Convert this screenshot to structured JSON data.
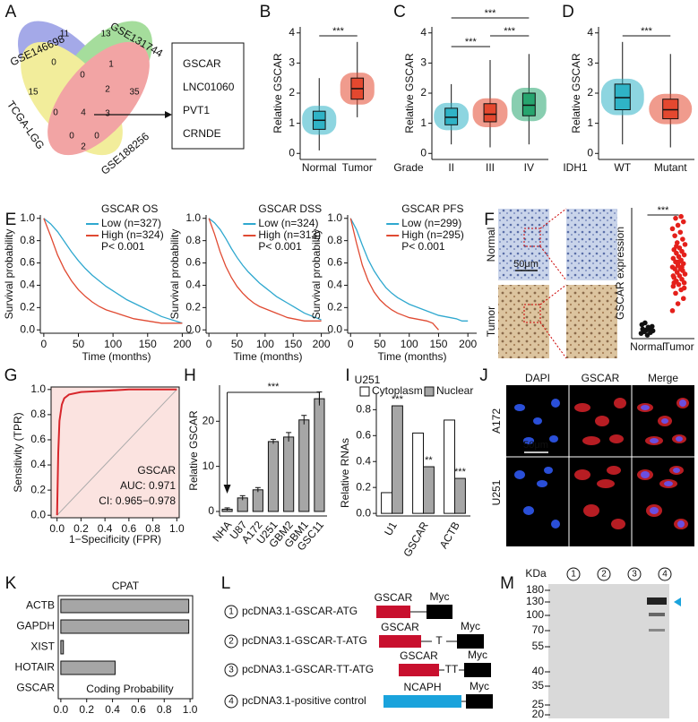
{
  "panel_letters": [
    "A",
    "B",
    "C",
    "D",
    "E",
    "F",
    "G",
    "H",
    "I",
    "J",
    "K",
    "L",
    "M"
  ],
  "venn": {
    "sets": [
      "GSE146698",
      "GSE131744",
      "TCGA-LGG",
      "GSE188256"
    ],
    "counts": [
      11,
      13,
      15,
      35,
      0,
      1,
      0,
      2,
      0,
      4,
      3,
      0,
      2,
      0
    ]
  },
  "candidate_box": {
    "items": [
      "GSCAR",
      "LNC01060",
      "PVT1",
      "CRNDE"
    ]
  },
  "ihc": {
    "row_labels": [
      "Normal",
      "Tumor"
    ],
    "scale_bar": "50μm"
  },
  "fluorescence": {
    "columns": [
      "DAPI",
      "GSCAR",
      "Merge"
    ],
    "rows": [
      "A172",
      "U251"
    ],
    "scale_bar": "50μm"
  },
  "constructs": {
    "items": [
      {
        "number": 1,
        "name": "pcDNA3.1-GSCAR-ATG",
        "insert": "GSCAR",
        "insert_color": "#c8102e",
        "tag": "Myc"
      },
      {
        "number": 2,
        "name": "pcDNA3.1-GSCAR-T-ATG",
        "insert": "GSCAR",
        "insert_color": "#c8102e",
        "linker": "T",
        "tag": "Myc"
      },
      {
        "number": 3,
        "name": "pcDNA3.1-GSCAR-TT-ATG",
        "insert": "GSCAR",
        "insert_color": "#c8102e",
        "linker": "TT",
        "tag": "Myc"
      },
      {
        "number": 4,
        "name": "pcDNA3.1-positive control",
        "insert": "NCAPH",
        "insert_color": "#1aa3dc",
        "tag": "Myc"
      }
    ]
  },
  "western": {
    "unit": "KDa",
    "markers": [
      180,
      130,
      100,
      70,
      55,
      40,
      35,
      25,
      20
    ],
    "lanes": [
      1,
      2,
      3,
      4
    ]
  },
  "chart_data": [
    {
      "type": "box",
      "y_label": "Relative GSCAR",
      "categories": [
        "Normal",
        "Tumor"
      ],
      "colors": [
        "#2fb3c6",
        "#e4482f"
      ],
      "ylim": [
        -0.2,
        4.2
      ],
      "yticks": [
        0,
        1,
        2,
        3,
        4
      ],
      "boxes": [
        {
          "min": 0.1,
          "q1": 0.8,
          "median": 1.1,
          "q3": 1.4,
          "max": 2.5
        },
        {
          "min": 1.2,
          "q1": 1.8,
          "median": 2.15,
          "q3": 2.5,
          "max": 3.7
        }
      ],
      "annotations": [
        "***"
      ]
    },
    {
      "type": "box",
      "y_label": "Relative GSCAR",
      "x_label": "Grade",
      "categories": [
        "II",
        "III",
        "IV"
      ],
      "colors": [
        "#2fb3c6",
        "#e4482f",
        "#27a56f"
      ],
      "ylim": [
        -0.2,
        4.2
      ],
      "yticks": [
        0,
        1,
        2,
        3,
        4
      ],
      "boxes": [
        {
          "min": 0.3,
          "q1": 0.95,
          "median": 1.2,
          "q3": 1.5,
          "max": 2.3
        },
        {
          "min": 0.2,
          "q1": 1.05,
          "median": 1.3,
          "q3": 1.65,
          "max": 3.1
        },
        {
          "min": 0.3,
          "q1": 1.25,
          "median": 1.6,
          "q3": 2.0,
          "max": 3.3
        }
      ],
      "annotations": [
        "***",
        "***",
        "***"
      ]
    },
    {
      "type": "box",
      "y_label": "Relative GSCAR",
      "x_label": "IDH1",
      "categories": [
        "WT",
        "Mutant"
      ],
      "colors": [
        "#2fb3c6",
        "#e4482f"
      ],
      "ylim": [
        -0.2,
        4.2
      ],
      "yticks": [
        0,
        1,
        2,
        3,
        4
      ],
      "boxes": [
        {
          "min": 0.3,
          "q1": 1.45,
          "median": 1.85,
          "q3": 2.3,
          "max": 3.7
        },
        {
          "min": 0.2,
          "q1": 1.15,
          "median": 1.45,
          "q3": 1.8,
          "max": 3.3
        }
      ],
      "annotations": [
        "***"
      ]
    },
    {
      "type": "km",
      "title": "GSCAR OS",
      "annotation": "P< 0.001",
      "y_label": "Survival probability",
      "x_label": "Time (months)",
      "x": [
        0,
        10,
        20,
        30,
        40,
        50,
        60,
        70,
        80,
        90,
        100,
        110,
        120,
        130,
        140,
        150,
        160,
        170,
        180,
        190,
        200
      ],
      "series": [
        {
          "name": "Low (n=327)",
          "color": "#2fa8cf",
          "values": [
            1,
            0.95,
            0.88,
            0.79,
            0.7,
            0.62,
            0.55,
            0.49,
            0.44,
            0.39,
            0.35,
            0.31,
            0.27,
            0.24,
            0.21,
            0.18,
            0.15,
            0.12,
            0.1,
            0.08,
            0.06
          ]
        },
        {
          "name": "High (n=324)",
          "color": "#e04a32",
          "values": [
            1,
            0.84,
            0.67,
            0.54,
            0.44,
            0.36,
            0.3,
            0.25,
            0.21,
            0.18,
            0.16,
            0.14,
            0.12,
            0.1,
            0.09,
            0.08,
            0.07,
            0.06,
            0.06,
            0.06,
            0.06
          ]
        }
      ],
      "xlim": [
        -5,
        215
      ],
      "ylim": [
        -0.03,
        1.03
      ],
      "xticks": [
        0,
        50,
        100,
        150,
        200
      ],
      "yticks": [
        {
          "value": 0,
          "label": "0.0"
        },
        {
          "value": 0.2,
          "label": "0.2"
        },
        {
          "value": 0.4,
          "label": "0.4"
        },
        {
          "value": 0.6,
          "label": "0.6"
        },
        {
          "value": 0.8,
          "label": "0.8"
        },
        {
          "value": 1,
          "label": "1.0"
        }
      ]
    },
    {
      "type": "km",
      "title": "GSCAR DSS",
      "annotation": "P< 0.001",
      "y_label": "Survival probability",
      "x_label": "Time (months)",
      "x": [
        0,
        10,
        20,
        30,
        40,
        50,
        60,
        70,
        80,
        90,
        100,
        110,
        120,
        130,
        140,
        150,
        160,
        170,
        180,
        190,
        200
      ],
      "series": [
        {
          "name": "Low (n=324)",
          "color": "#2fa8cf",
          "values": [
            1,
            0.96,
            0.9,
            0.82,
            0.73,
            0.65,
            0.58,
            0.52,
            0.47,
            0.42,
            0.38,
            0.34,
            0.3,
            0.27,
            0.24,
            0.21,
            0.18,
            0.15,
            0.13,
            0.11,
            0.09
          ]
        },
        {
          "name": "High (n=313)",
          "color": "#e04a32",
          "values": [
            1,
            0.86,
            0.7,
            0.57,
            0.47,
            0.39,
            0.33,
            0.28,
            0.24,
            0.21,
            0.19,
            0.17,
            0.15,
            0.13,
            0.11,
            0.1,
            0.09,
            0.08,
            0.08,
            0.08,
            0.08
          ]
        }
      ],
      "xlim": [
        -5,
        215
      ],
      "ylim": [
        -0.03,
        1.03
      ],
      "xticks": [
        0,
        50,
        100,
        150,
        200
      ],
      "yticks": [
        {
          "value": 0,
          "label": "0.0"
        },
        {
          "value": 0.2,
          "label": "0.2"
        },
        {
          "value": 0.4,
          "label": "0.4"
        },
        {
          "value": 0.6,
          "label": "0.6"
        },
        {
          "value": 0.8,
          "label": "0.8"
        },
        {
          "value": 1,
          "label": "1.0"
        }
      ]
    },
    {
      "type": "km",
      "title": "GSCAR PFS",
      "annotation": "P< 0.001",
      "y_label": "Survival probability",
      "x_label": "Time (months)",
      "x": [
        0,
        10,
        20,
        30,
        40,
        50,
        60,
        70,
        80,
        90,
        100,
        110,
        120,
        130,
        140,
        150,
        160,
        170,
        180,
        190,
        200
      ],
      "series": [
        {
          "name": "Low (n=299)",
          "color": "#2fa8cf",
          "values": [
            1,
            0.9,
            0.76,
            0.63,
            0.53,
            0.45,
            0.38,
            0.33,
            0.29,
            0.26,
            0.23,
            0.21,
            0.19,
            0.17,
            0.15,
            0.13,
            0.12,
            0.11,
            0.1,
            0.08,
            0.08
          ]
        },
        {
          "name": "High (n=295)",
          "color": "#e04a32",
          "values": [
            1,
            0.78,
            0.58,
            0.44,
            0.34,
            0.27,
            0.22,
            0.18,
            0.15,
            0.13,
            0.11,
            0.1,
            0.09,
            0.08,
            0.06,
            0,
            null,
            null,
            null,
            null,
            null
          ]
        }
      ],
      "xlim": [
        -5,
        215
      ],
      "ylim": [
        -0.03,
        1.03
      ],
      "xticks": [
        0,
        50,
        100,
        150,
        200
      ],
      "yticks": [
        {
          "value": 0,
          "label": "0.0"
        },
        {
          "value": 0.2,
          "label": "0.2"
        },
        {
          "value": 0.4,
          "label": "0.4"
        },
        {
          "value": 0.6,
          "label": "0.6"
        },
        {
          "value": 0.8,
          "label": "0.8"
        },
        {
          "value": 1,
          "label": "1.0"
        }
      ]
    },
    {
      "type": "strip",
      "y_label": "GSCAR expression",
      "categories": [
        "Normal",
        "Tumor"
      ],
      "colors": [
        "#111111",
        "#e4201b"
      ],
      "ylim": [
        0,
        7.5
      ],
      "annotations": [
        "***"
      ],
      "values": [
        [
          0.3,
          0.5,
          0.7,
          0.4,
          0.6,
          0.8,
          0.2,
          0.45,
          0.9,
          0.35,
          0.55,
          0.65
        ],
        [
          1.6,
          2.0,
          2.3,
          2.6,
          2.8,
          3.0,
          3.1,
          3.2,
          3.3,
          3.4,
          3.5,
          3.6,
          3.7,
          3.8,
          3.9,
          4.0,
          4.0,
          4.1,
          4.2,
          4.3,
          4.4,
          4.5,
          4.6,
          4.7,
          4.8,
          4.9,
          5.0,
          5.1,
          5.2,
          5.4,
          5.5,
          5.7,
          5.9,
          6.1,
          6.3,
          6.5,
          6.7,
          6.9,
          7.0,
          3.6,
          4.4,
          2.9,
          5.3,
          4.1,
          3.2
        ]
      ]
    },
    {
      "type": "roc",
      "y_label": "Sensitivity (TPR)",
      "x_label": "1−Specificity (FPR)",
      "color": "#d7262b",
      "fill": "#fbe3e0",
      "annotations": [
        "GSCAR",
        "AUC: 0.971",
        "CI: 0.965−0.978"
      ],
      "x": [
        0,
        0.01,
        0.02,
        0.04,
        0.06,
        0.1,
        0.2,
        0.4,
        0.6,
        1
      ],
      "values": [
        0,
        0.5,
        0.75,
        0.88,
        0.93,
        0.96,
        0.98,
        0.99,
        1,
        1
      ],
      "xlim": [
        -0.05,
        1.02
      ],
      "ylim": [
        -0.02,
        1.02
      ],
      "xticks": [
        {
          "value": 0,
          "label": "0.0"
        },
        {
          "value": 0.2,
          "label": "0.2"
        },
        {
          "value": 0.4,
          "label": "0.4"
        },
        {
          "value": 0.6,
          "label": "0.6"
        },
        {
          "value": 0.8,
          "label": "0.8"
        },
        {
          "value": 1,
          "label": "1.0"
        }
      ],
      "yticks": [
        {
          "value": 0,
          "label": "0.0"
        },
        {
          "value": 0.2,
          "label": "0.2"
        },
        {
          "value": 0.4,
          "label": "0.4"
        },
        {
          "value": 0.6,
          "label": "0.6"
        },
        {
          "value": 0.8,
          "label": "0.8"
        },
        {
          "value": 1,
          "label": "1.0"
        }
      ]
    },
    {
      "type": "bar",
      "y_label": "Relative GSCAR",
      "categories": [
        "NHA",
        "U87",
        "A172",
        "U251",
        "GBM2",
        "GBM1",
        "GSC11"
      ],
      "color": "#a6a6a6",
      "values": [
        0.5,
        3,
        4.8,
        15.5,
        16.5,
        20.3,
        25
      ],
      "errors": [
        0.3,
        0.5,
        0.5,
        0.5,
        1,
        1,
        1.5
      ],
      "annotations": [
        "***"
      ],
      "ylim": [
        -1,
        28
      ],
      "yticks": [
        0,
        10,
        20
      ]
    },
    {
      "type": "grouped_bar",
      "title": "U251",
      "y_label": "Relative RNAs",
      "categories": [
        "U1",
        "GSCAR",
        "ACTB"
      ],
      "series": [
        {
          "name": "Cytoplasm",
          "color": "#ffffff",
          "values": [
            0.16,
            0.62,
            0.72
          ]
        },
        {
          "name": "Nuclear",
          "color": "#a6a6a6",
          "values": [
            0.83,
            0.36,
            0.27
          ],
          "significance": [
            "***",
            "**",
            "***"
          ]
        }
      ],
      "ylim": [
        -0.02,
        0.92
      ],
      "yticks": [
        {
          "value": 0,
          "label": "0.0"
        },
        {
          "value": 0.2,
          "label": "0.2"
        },
        {
          "value": 0.4,
          "label": "0.4"
        },
        {
          "value": 0.6,
          "label": "0.6"
        },
        {
          "value": 0.8,
          "label": "0.8"
        }
      ]
    },
    {
      "type": "hbar",
      "title": "CPAT",
      "x_label": "Coding Probability",
      "categories": [
        "ACTB",
        "GAPDH",
        "XIST",
        "HOTAIR",
        "GSCAR"
      ],
      "color": "#a6a6a6",
      "values": [
        0.99,
        0.99,
        0.02,
        0.42,
        0
      ],
      "xlim": [
        -0.02,
        1.02
      ],
      "xticks": [
        {
          "value": 0,
          "label": "0.0"
        },
        {
          "value": 0.2,
          "label": "0.2"
        },
        {
          "value": 0.4,
          "label": "0.4"
        },
        {
          "value": 0.6,
          "label": "0.6"
        },
        {
          "value": 0.8,
          "label": "0.8"
        },
        {
          "value": 1,
          "label": "1.0"
        }
      ]
    }
  ]
}
